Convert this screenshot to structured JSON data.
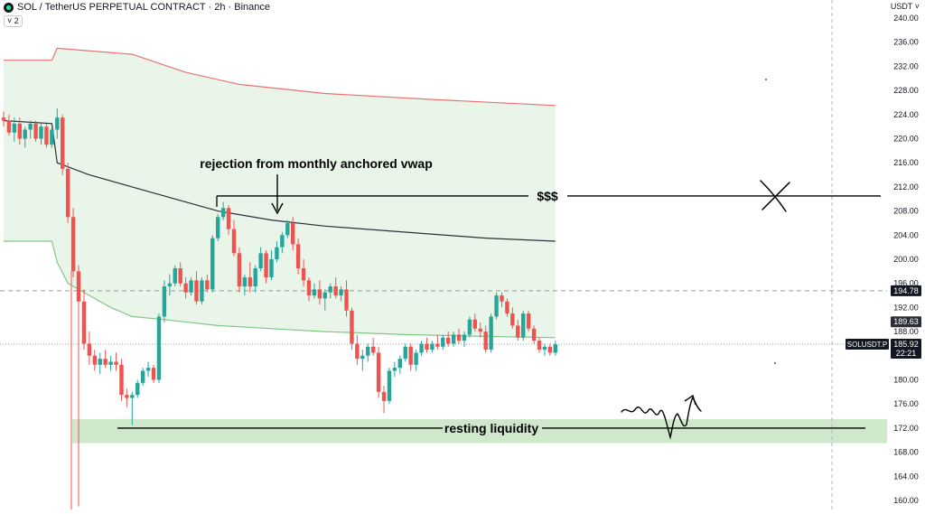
{
  "header": {
    "symbol_title": "SOL / TetherUS PERPETUAL CONTRACT · 2h · Binance",
    "indicator_count_label": "˅ 2",
    "currency_label": "USDT ˅"
  },
  "colors": {
    "up": "#26a69a",
    "down": "#ef5350",
    "upper_band": "#e57373",
    "vwap": "#2a2e39",
    "lower_band": "#81c784",
    "band_fill": "#eaf5ea",
    "liquidity_zone": "#cfe8cc",
    "annotation": "#000000"
  },
  "chart_data": {
    "type": "candlestick",
    "title": "SOL / TetherUS PERPETUAL CONTRACT · 2h · Binance",
    "ylim": [
      158.5,
      243
    ],
    "y_ticks": [
      160,
      164,
      168,
      172,
      176,
      180,
      184,
      188,
      192,
      196,
      200,
      204,
      208,
      212,
      216,
      220,
      224,
      228,
      232,
      236,
      240
    ],
    "bar_count": 104,
    "candles": [
      [
        223.5,
        224.5,
        222.0,
        223.0
      ],
      [
        223.0,
        224.0,
        220.5,
        221.0
      ],
      [
        221.0,
        223.5,
        219.5,
        222.5
      ],
      [
        222.5,
        223.5,
        219.0,
        220.0
      ],
      [
        220.0,
        222.0,
        218.5,
        221.5
      ],
      [
        221.5,
        223.0,
        220.0,
        222.5
      ],
      [
        222.5,
        223.0,
        219.5,
        220.0
      ],
      [
        220.0,
        222.5,
        219.0,
        222.0
      ],
      [
        222.0,
        222.5,
        218.5,
        219.0
      ],
      [
        219.0,
        222.0,
        218.5,
        221.5
      ],
      [
        221.5,
        225.0,
        220.0,
        223.5
      ],
      [
        223.5,
        224.0,
        214.0,
        215.0
      ],
      [
        215.0,
        216.0,
        206.0,
        207.0
      ],
      [
        207.0,
        208.5,
        197.0,
        198.0
      ],
      [
        198.0,
        199.0,
        159.0,
        193.0
      ],
      [
        193.0,
        195.0,
        185.0,
        186.0
      ],
      [
        186.0,
        188.0,
        182.5,
        184.0
      ],
      [
        184.0,
        185.0,
        181.5,
        182.5
      ],
      [
        182.5,
        184.5,
        181.0,
        183.5
      ],
      [
        183.5,
        185.0,
        182.0,
        182.5
      ],
      [
        182.5,
        184.0,
        181.5,
        183.0
      ],
      [
        183.0,
        184.5,
        181.5,
        182.5
      ],
      [
        182.5,
        183.5,
        176.5,
        177.5
      ],
      [
        177.5,
        178.5,
        175.5,
        177.0
      ],
      [
        177.0,
        178.0,
        172.5,
        177.5
      ],
      [
        177.5,
        180.0,
        177.0,
        179.5
      ],
      [
        179.5,
        182.0,
        179.0,
        181.5
      ],
      [
        181.5,
        183.0,
        180.5,
        182.0
      ],
      [
        182.0,
        182.5,
        179.5,
        180.0
      ],
      [
        180.0,
        191.0,
        179.5,
        190.5
      ],
      [
        190.5,
        196.5,
        189.5,
        195.5
      ],
      [
        195.5,
        197.5,
        194.0,
        196.0
      ],
      [
        196.0,
        199.0,
        195.5,
        198.5
      ],
      [
        198.5,
        199.5,
        195.5,
        196.0
      ],
      [
        196.0,
        197.0,
        193.5,
        194.5
      ],
      [
        194.5,
        197.0,
        194.0,
        196.5
      ],
      [
        196.5,
        198.0,
        192.5,
        193.0
      ],
      [
        193.0,
        197.0,
        192.5,
        196.5
      ],
      [
        196.5,
        197.5,
        194.5,
        195.0
      ],
      [
        195.0,
        204.0,
        194.5,
        203.5
      ],
      [
        203.5,
        207.5,
        203.0,
        207.0
      ],
      [
        207.0,
        209.5,
        206.5,
        208.5
      ],
      [
        208.5,
        209.0,
        204.0,
        205.0
      ],
      [
        205.0,
        206.5,
        200.5,
        201.0
      ],
      [
        201.0,
        202.0,
        194.5,
        195.5
      ],
      [
        195.5,
        197.5,
        194.0,
        197.0
      ],
      [
        197.0,
        199.5,
        194.5,
        195.5
      ],
      [
        195.5,
        199.0,
        194.5,
        198.5
      ],
      [
        198.5,
        202.0,
        198.0,
        201.0
      ],
      [
        201.0,
        201.5,
        196.0,
        197.0
      ],
      [
        197.0,
        201.5,
        196.5,
        200.0
      ],
      [
        200.0,
        203.0,
        199.5,
        202.0
      ],
      [
        202.0,
        204.5,
        201.0,
        204.0
      ],
      [
        204.0,
        206.5,
        203.5,
        206.0
      ],
      [
        206.0,
        207.0,
        201.5,
        202.5
      ],
      [
        202.5,
        203.5,
        197.5,
        198.5
      ],
      [
        198.5,
        200.0,
        195.5,
        196.5
      ],
      [
        196.5,
        197.0,
        193.0,
        194.0
      ],
      [
        194.0,
        196.0,
        193.5,
        195.0
      ],
      [
        195.0,
        196.5,
        192.5,
        193.5
      ],
      [
        193.5,
        195.0,
        191.5,
        194.5
      ],
      [
        194.5,
        196.0,
        193.5,
        195.5
      ],
      [
        195.5,
        197.0,
        193.5,
        194.0
      ],
      [
        194.0,
        195.5,
        193.0,
        195.0
      ],
      [
        195.0,
        196.5,
        190.5,
        191.5
      ],
      [
        191.5,
        192.0,
        185.0,
        186.0
      ],
      [
        186.0,
        187.5,
        182.5,
        183.5
      ],
      [
        183.5,
        185.0,
        181.5,
        184.0
      ],
      [
        184.0,
        186.0,
        183.0,
        185.5
      ],
      [
        185.5,
        187.0,
        184.0,
        184.5
      ],
      [
        184.5,
        185.5,
        177.0,
        178.0
      ],
      [
        178.0,
        179.0,
        174.5,
        176.5
      ],
      [
        176.5,
        182.0,
        176.0,
        181.5
      ],
      [
        181.5,
        183.0,
        180.5,
        182.0
      ],
      [
        182.0,
        184.0,
        181.0,
        183.5
      ],
      [
        183.5,
        186.0,
        183.0,
        185.5
      ],
      [
        185.5,
        186.0,
        181.5,
        182.5
      ],
      [
        182.5,
        185.0,
        181.5,
        184.5
      ],
      [
        184.5,
        186.5,
        184.0,
        186.0
      ],
      [
        186.0,
        187.0,
        184.5,
        185.0
      ],
      [
        185.0,
        186.5,
        184.5,
        186.0
      ],
      [
        186.0,
        187.5,
        185.0,
        185.5
      ],
      [
        185.5,
        187.5,
        185.0,
        187.0
      ],
      [
        187.0,
        188.0,
        185.5,
        186.0
      ],
      [
        186.0,
        188.0,
        185.5,
        187.5
      ],
      [
        187.5,
        188.5,
        186.0,
        186.5
      ],
      [
        186.5,
        188.0,
        185.5,
        187.5
      ],
      [
        187.5,
        190.5,
        187.0,
        190.0
      ],
      [
        190.0,
        191.0,
        188.0,
        188.5
      ],
      [
        188.5,
        189.5,
        187.0,
        188.0
      ],
      [
        188.0,
        189.0,
        184.5,
        185.0
      ],
      [
        185.0,
        191.0,
        184.5,
        190.5
      ],
      [
        190.5,
        194.5,
        190.0,
        194.0
      ],
      [
        194.0,
        194.5,
        192.0,
        193.0
      ],
      [
        193.0,
        193.5,
        190.5,
        191.0
      ],
      [
        191.0,
        192.0,
        188.5,
        189.0
      ],
      [
        189.0,
        190.0,
        186.5,
        187.0
      ],
      [
        187.0,
        191.5,
        186.5,
        191.0
      ],
      [
        191.0,
        191.5,
        188.0,
        188.5
      ],
      [
        188.5,
        189.0,
        186.0,
        186.5
      ],
      [
        186.5,
        187.0,
        184.5,
        185.0
      ],
      [
        185.0,
        186.0,
        184.0,
        185.5
      ],
      [
        185.5,
        186.0,
        184.0,
        184.5
      ],
      [
        184.5,
        186.5,
        184.0,
        185.9
      ]
    ],
    "upper_band": [
      [
        0,
        233
      ],
      [
        9,
        233
      ],
      [
        10,
        235
      ],
      [
        24,
        234
      ],
      [
        34,
        231
      ],
      [
        44,
        229
      ],
      [
        60,
        227.5
      ],
      [
        80,
        226.5
      ],
      [
        103,
        225.5
      ]
    ],
    "vwap": [
      [
        0,
        223
      ],
      [
        9,
        222.5
      ],
      [
        10,
        216
      ],
      [
        16,
        214
      ],
      [
        24,
        212
      ],
      [
        32,
        210
      ],
      [
        40,
        208
      ],
      [
        50,
        206.5
      ],
      [
        60,
        205.5
      ],
      [
        75,
        204.5
      ],
      [
        90,
        203.5
      ],
      [
        103,
        203
      ]
    ],
    "lower_band": [
      [
        0,
        203
      ],
      [
        9,
        203
      ],
      [
        10,
        199.5
      ],
      [
        12,
        196
      ],
      [
        16,
        194
      ],
      [
        20,
        192
      ],
      [
        24,
        190.5
      ],
      [
        30,
        190
      ],
      [
        40,
        189
      ],
      [
        50,
        188.5
      ],
      [
        60,
        188
      ],
      [
        75,
        187.5
      ],
      [
        90,
        187.2
      ],
      [
        103,
        187
      ]
    ],
    "price_lines": [
      {
        "label": "194.78",
        "value": 194.78,
        "style": "dashed"
      },
      {
        "label": "189.63",
        "value": 189.63,
        "style": "none"
      },
      {
        "label": "185.92",
        "value": 185.92,
        "style": "dotted",
        "symbol": "SOLUSDT.P",
        "countdown": "22:21"
      }
    ],
    "resistance_level": 210.5,
    "liquidity_zone": [
      169.5,
      173.5
    ],
    "liquidity_level": 172.0,
    "annotations": {
      "rejection_text": "rejection from monthly anchored vwap",
      "dollar_text": "$$$",
      "liquidity_text": "resting liquidity"
    }
  }
}
